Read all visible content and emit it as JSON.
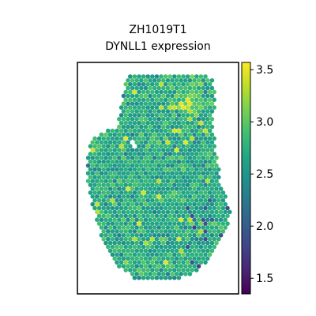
{
  "chart_data": {
    "type": "scatter",
    "title": "ZH1019T1",
    "subtitle": "DYNLL1 expression",
    "colormap": "viridis",
    "color_range": [
      1.35,
      3.57
    ],
    "colorbar_ticks": [
      1.5,
      2.0,
      2.5,
      3.0,
      3.5
    ],
    "colorbar_tick_labels": [
      "1.5",
      "2.0",
      "2.5",
      "3.0",
      "3.5"
    ],
    "colors": {
      "viridis_low": "#440154",
      "viridis_mid": "#21918c",
      "viridis_high": "#fde725",
      "frame": "#000000"
    },
    "axes_visible": false,
    "grid": false,
    "legend": "colorbar-right",
    "typical_value": 2.7,
    "hotspot_value": 3.4,
    "hotspot_location": "upper-right of tissue"
  }
}
